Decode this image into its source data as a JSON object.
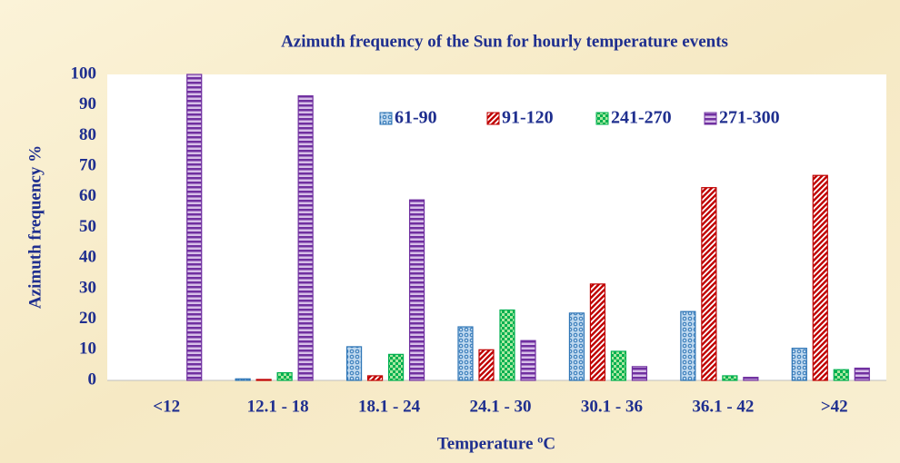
{
  "chart_data": {
    "type": "bar",
    "title": "Azimuth frequency of the Sun for hourly temperature events",
    "x_label": "Temperature ºC",
    "y_label": "Azimuth frequency %",
    "categories": [
      "<12",
      "12.1 - 18",
      "18.1 - 24",
      "24.1 - 30",
      "30.1 - 36",
      "36.1 - 42",
      ">42"
    ],
    "series": [
      {
        "name": "61-90",
        "color": "#2e75b6",
        "pattern": "dots",
        "values": [
          0,
          0.5,
          11,
          17.5,
          22,
          22.5,
          10.5
        ]
      },
      {
        "name": "91-120",
        "color": "#c00000",
        "pattern": "diagonal",
        "values": [
          0,
          0.3,
          1.5,
          10,
          31.5,
          63,
          67
        ]
      },
      {
        "name": "241-270",
        "color": "#00b050",
        "pattern": "checker",
        "values": [
          0,
          2.5,
          8.5,
          23,
          9.5,
          1.5,
          3.5
        ]
      },
      {
        "name": "271-300",
        "color": "#7030a0",
        "pattern": "horizontal",
        "values": [
          100,
          93,
          59,
          13,
          4.5,
          1,
          4
        ]
      }
    ],
    "ylim": [
      0,
      100
    ],
    "yticks": [
      0,
      10,
      20,
      30,
      40,
      50,
      60,
      70,
      80,
      90,
      100
    ],
    "legend": "top",
    "grid": false
  }
}
